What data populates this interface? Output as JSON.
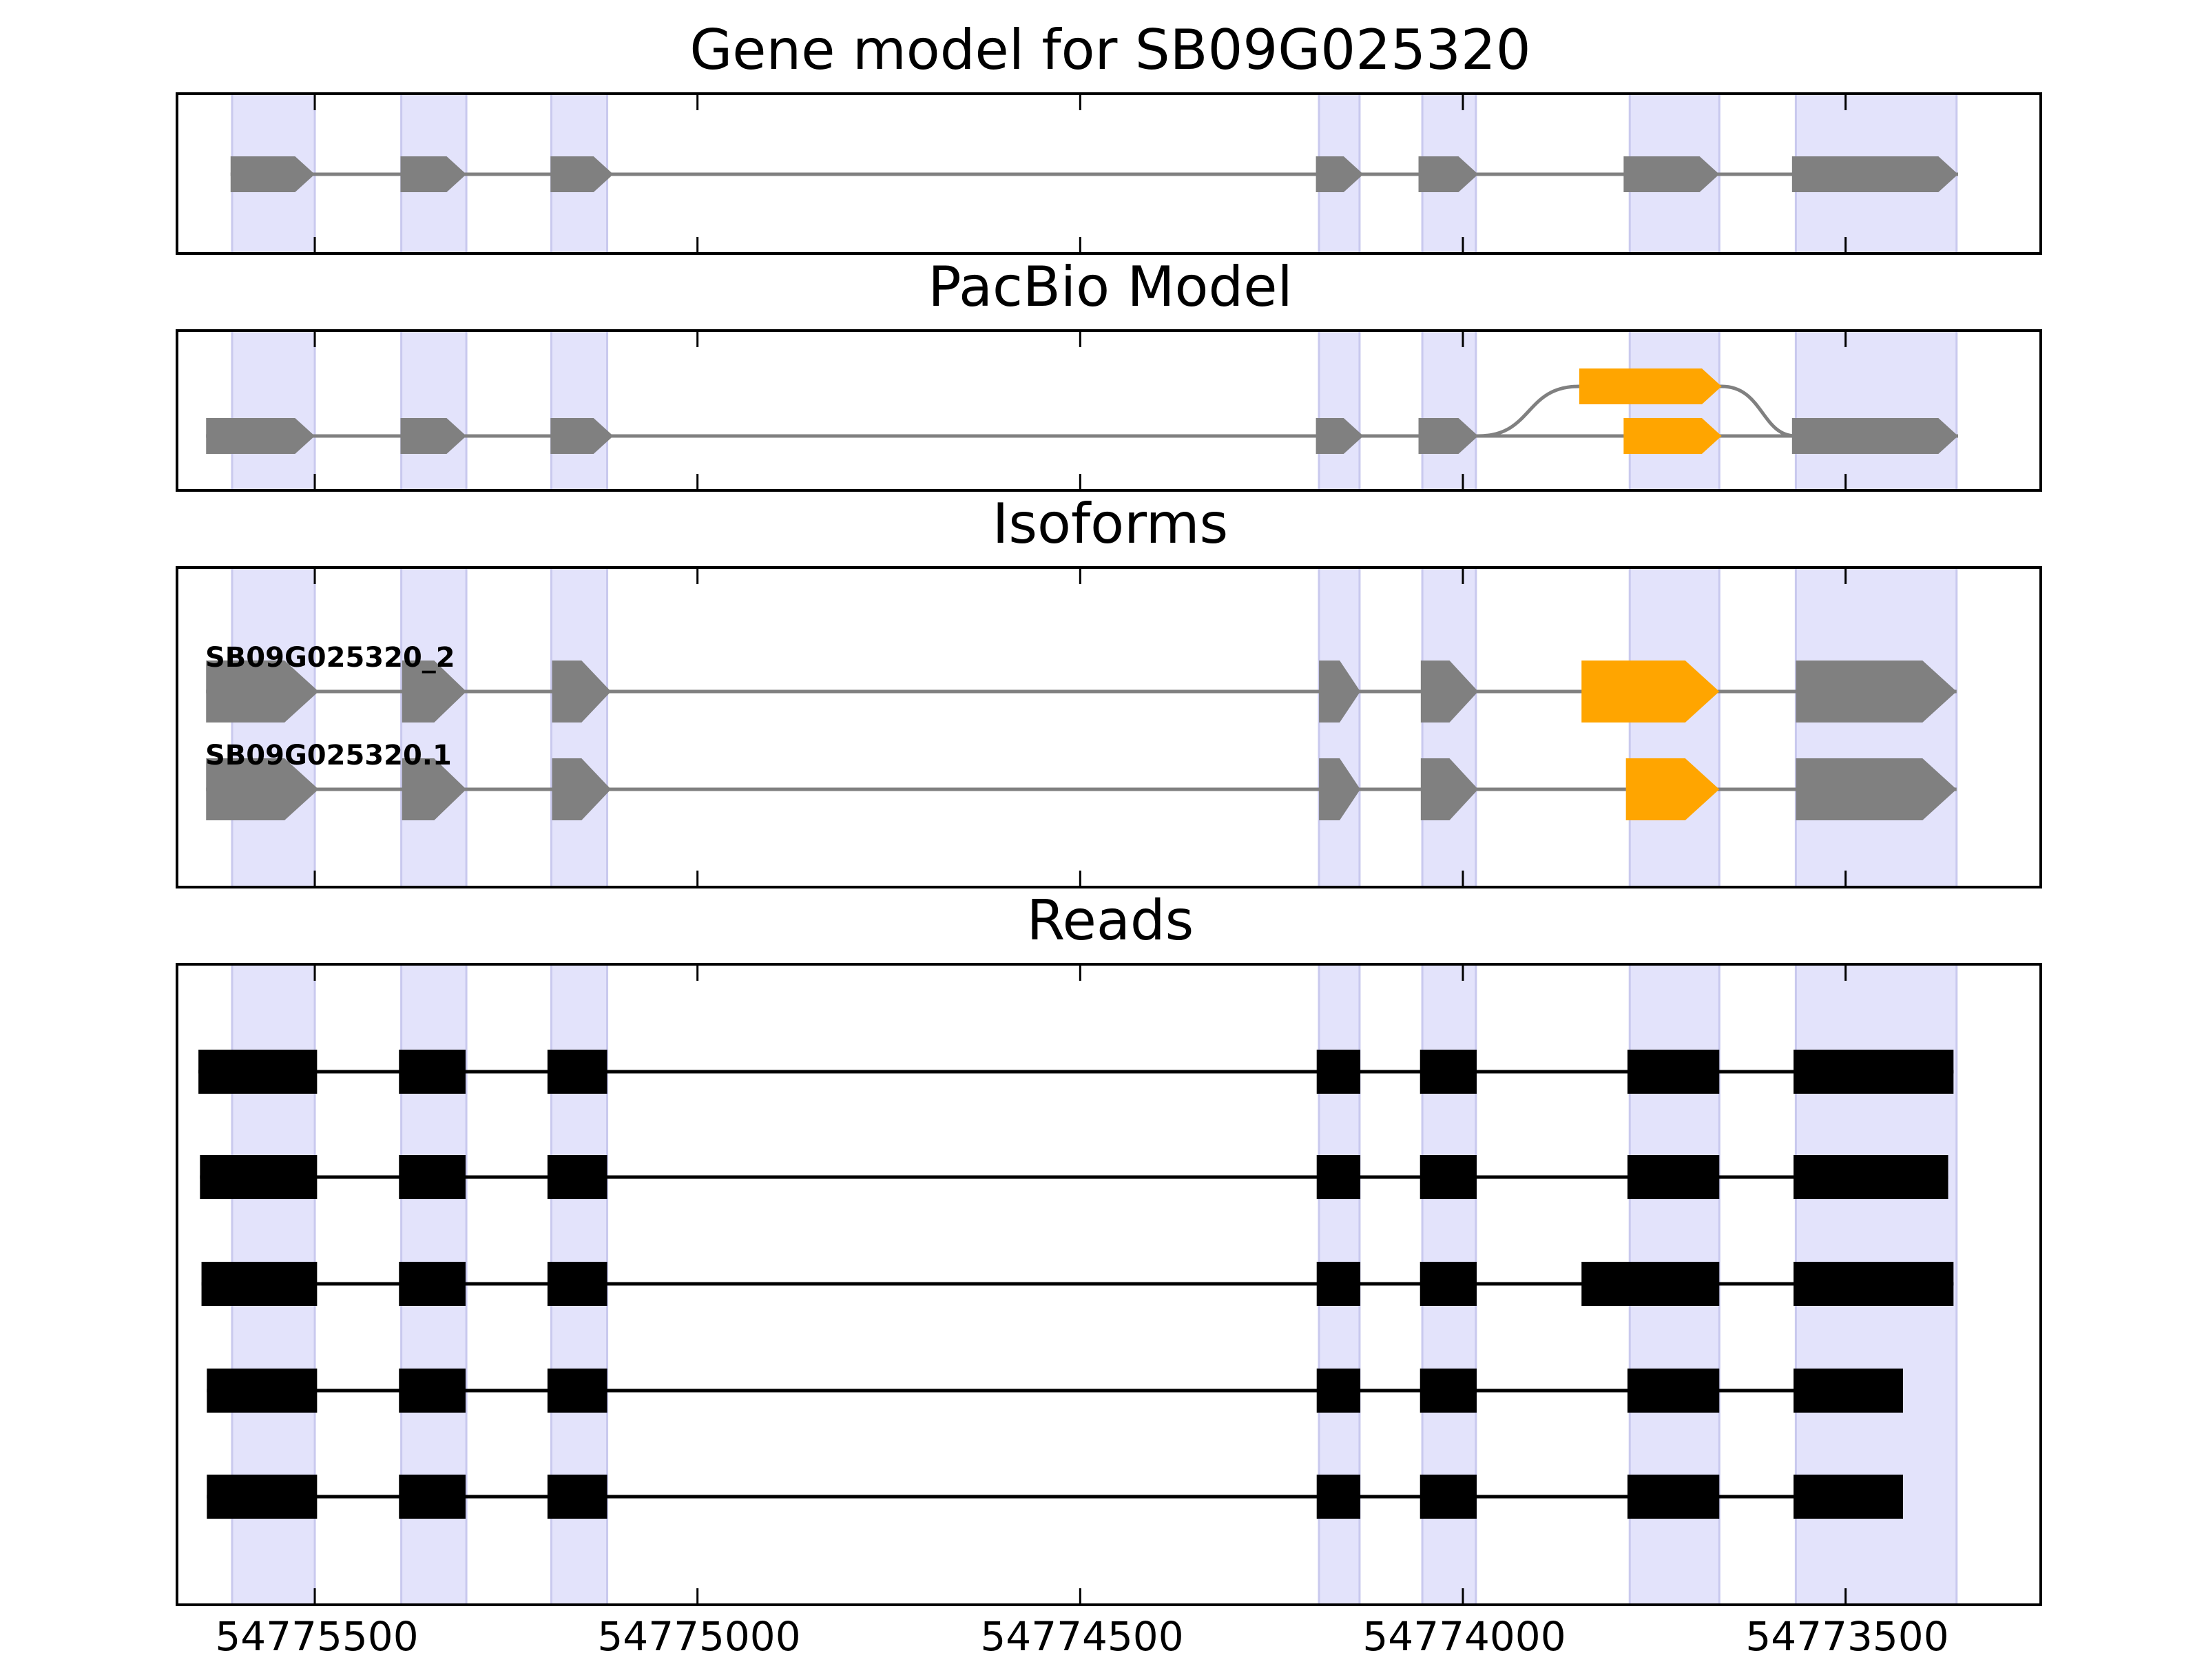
{
  "colors": {
    "exon_gray": "#808080",
    "exon_orange": "#FFA500",
    "read_black": "#000000",
    "highlight": "#E3E3FB",
    "highlight_edge": "#C9C9EE",
    "frame": "#000000"
  },
  "chart_data": {
    "type": "gene-model",
    "strand": "-",
    "x_ticks": [
      54775500,
      54775000,
      54774500,
      54774000,
      54773500
    ],
    "x_tick_labels": [
      "54775500",
      "54775000",
      "54774500",
      "54774000",
      "54773500"
    ],
    "xlim": [
      54775680,
      54773245
    ],
    "highlight_regions": [
      [
        54775608,
        54775500
      ],
      [
        54775387,
        54775302
      ],
      [
        54775191,
        54775118
      ],
      [
        54774188,
        54774135
      ],
      [
        54774053,
        54773983
      ],
      [
        54773782,
        54773665
      ],
      [
        54773565,
        54773355
      ]
    ],
    "panels": [
      {
        "title": "Gene model for SB09G025320",
        "tracks": [
          {
            "label": "",
            "color": "gray",
            "exons": [
              [
                54775610,
                54775500
              ],
              [
                54775388,
                54775302
              ],
              [
                54775192,
                54775110
              ],
              [
                54774115,
                54774135
              ],
              [
                54774192,
                54774130
              ],
              [
                54774058,
                54773980
              ],
              [
                54773790,
                54773665
              ],
              [
                54773570,
                54773353
              ]
            ]
          }
        ]
      },
      {
        "title": "PacBio Model",
        "tracks": [
          {
            "label": "",
            "color": "gray",
            "exons": [
              [
                54775642,
                54775500
              ],
              [
                54775388,
                54775302
              ],
              [
                54775192,
                54775110
              ],
              [
                54774192,
                54774130
              ],
              [
                54774058,
                54773980
              ],
              [
                54773570,
                54773353
              ]
            ],
            "alt_exons": [
              [
                54773848,
                54773662
              ],
              [
                54773790,
                54773662
              ]
            ]
          }
        ]
      },
      {
        "title": "Isoforms",
        "tracks": [
          {
            "label": "SB09G025320_2",
            "exons": [
              [
                54775642,
                54775495
              ],
              [
                54775386,
                54775302
              ],
              [
                54775190,
                54775113
              ],
              [
                54774188,
                54774134
              ],
              [
                54774055,
                54773980
              ],
              [
                54773845,
                54773665
              ],
              [
                54773565,
                54773355
              ]
            ],
            "orange_index": 5
          },
          {
            "label": "SB09G025320.1",
            "exons": [
              [
                54775642,
                54775495
              ],
              [
                54775386,
                54775302
              ],
              [
                54775190,
                54775113
              ],
              [
                54774188,
                54774134
              ],
              [
                54774055,
                54773980
              ],
              [
                54773787,
                54773665
              ],
              [
                54773565,
                54773355
              ]
            ],
            "orange_index": 5
          }
        ]
      },
      {
        "title": "Reads",
        "reads": [
          [
            [
              54775652,
              54775497
            ],
            [
              54775390,
              54775303
            ],
            [
              54775196,
              54775118
            ],
            [
              54774119,
              54774134
            ],
            [
              54774191,
              54774134
            ],
            [
              54774056,
              54773982
            ],
            [
              54773785,
              54773665
            ],
            [
              54773568,
              54773359
            ]
          ],
          [
            [
              54775650,
              54775497
            ],
            [
              54775390,
              54775303
            ],
            [
              54775196,
              54775118
            ],
            [
              54774191,
              54774134
            ],
            [
              54774056,
              54773982
            ],
            [
              54773785,
              54773665
            ],
            [
              54773568,
              54773366
            ]
          ],
          [
            [
              54775648,
              54775497
            ],
            [
              54775390,
              54775303
            ],
            [
              54775196,
              54775118
            ],
            [
              54774191,
              54774134
            ],
            [
              54774056,
              54773982
            ],
            [
              54773845,
              54773665
            ],
            [
              54773568,
              54773359
            ]
          ],
          [
            [
              54775641,
              54775497
            ],
            [
              54775390,
              54775303
            ],
            [
              54775196,
              54775118
            ],
            [
              54774191,
              54774134
            ],
            [
              54774056,
              54773982
            ],
            [
              54773785,
              54773665
            ],
            [
              54773568,
              54773425
            ]
          ],
          [
            [
              54775641,
              54775497
            ],
            [
              54775390,
              54775303
            ],
            [
              54775196,
              54775118
            ],
            [
              54774191,
              54774134
            ],
            [
              54774056,
              54773982
            ],
            [
              54773785,
              54773665
            ],
            [
              54773568,
              54773425
            ]
          ]
        ]
      }
    ]
  }
}
